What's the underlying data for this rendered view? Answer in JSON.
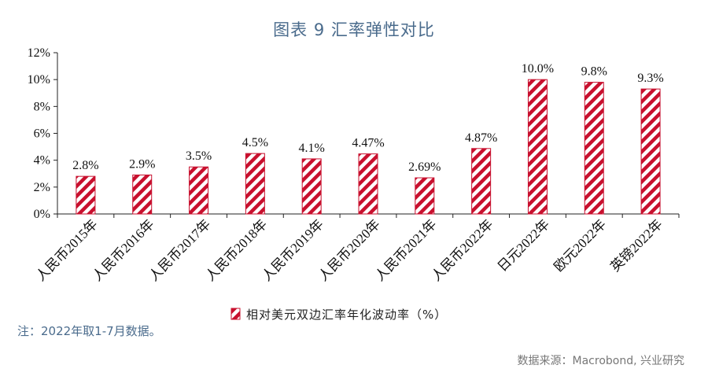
{
  "chart_data": {
    "type": "bar",
    "title": "图表 9 汇率弹性对比",
    "categories": [
      "人民币2015年",
      "人民币2016年",
      "人民币2017年",
      "人民币2018年",
      "人民币2019年",
      "人民币2020年",
      "人民币2021年",
      "人民币2022年",
      "日元2022年",
      "欧元2022年",
      "英镑2022年"
    ],
    "values": [
      2.8,
      2.9,
      3.5,
      4.5,
      4.1,
      4.47,
      2.69,
      4.87,
      10.0,
      9.8,
      9.3
    ],
    "data_labels": [
      "2.8%",
      "2.9%",
      "3.5%",
      "4.5%",
      "4.1%",
      "4.47%",
      "2.69%",
      "4.87%",
      "10.0%",
      "9.8%",
      "9.3%"
    ],
    "yticks": [
      0,
      2,
      4,
      6,
      8,
      10,
      12
    ],
    "ytick_labels": [
      "0%",
      "2%",
      "4%",
      "6%",
      "8%",
      "10%",
      "12%"
    ],
    "ylim": [
      0,
      12
    ],
    "xlabel": "",
    "ylabel": "",
    "grid": false,
    "legend": {
      "position": "bottom",
      "entries": [
        "相对美元双边汇率年化波动率（%）"
      ]
    },
    "colors": {
      "bar_stripe": "#c8102e",
      "bar_background": "#ffffff"
    }
  },
  "note": "注：2022年取1-7月数据。",
  "source": "数据来源：Macrobond, 兴业研究",
  "colors": {
    "title": "#4a6b8c",
    "note": "#4a6b8c"
  }
}
